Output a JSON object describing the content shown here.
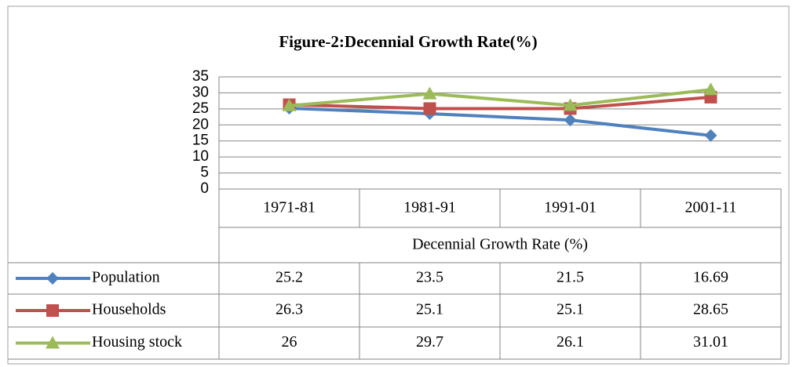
{
  "chart_data": {
    "type": "line",
    "title": "Figure-2:Decennial Growth Rate(%)",
    "x_label": "Decennial Growth Rate (%)",
    "categories": [
      "1971-81",
      "1981-91",
      "1991-01",
      "2001-11"
    ],
    "series": [
      {
        "name": "Population",
        "color": "#4f81bd",
        "marker": "diamond",
        "values": [
          25.2,
          23.5,
          21.5,
          16.69
        ]
      },
      {
        "name": "Households",
        "color": "#c0504d",
        "marker": "square",
        "values": [
          26.3,
          25.1,
          25.1,
          28.65
        ]
      },
      {
        "name": "Housing stock",
        "color": "#9bbb59",
        "marker": "triangle",
        "values": [
          26,
          29.7,
          26.1,
          31.01
        ]
      }
    ],
    "ylim": [
      0,
      35
    ],
    "yticks": [
      0,
      5,
      10,
      15,
      20,
      25,
      30,
      35
    ],
    "grid": true,
    "data_table": true
  }
}
